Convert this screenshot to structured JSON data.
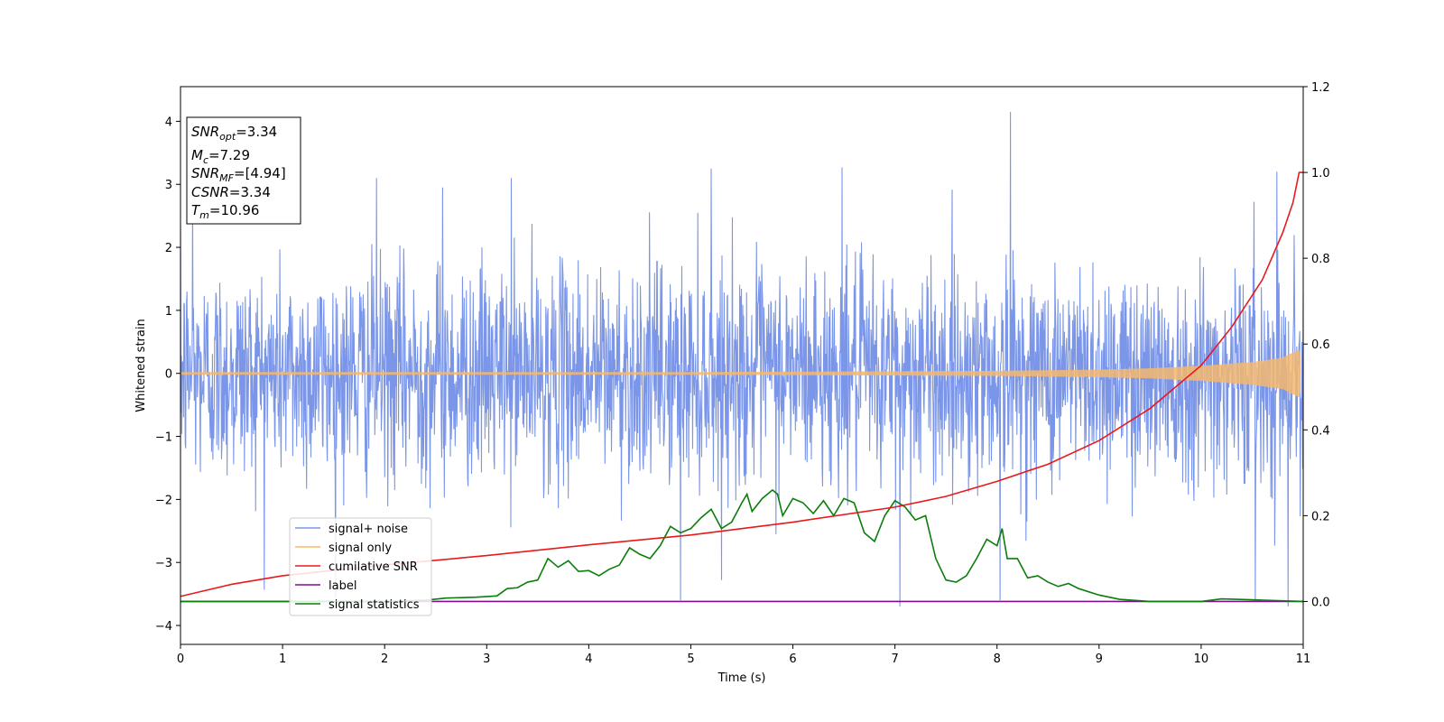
{
  "chart_data": {
    "type": "line",
    "title": "",
    "xlabel": "Time (s)",
    "ylabel": "Whitened strain",
    "y2label": "",
    "xlim": [
      0,
      11
    ],
    "ylim": [
      -4.3,
      4.55
    ],
    "y2lim": [
      -0.1,
      1.2
    ],
    "xticks": [
      0,
      1,
      2,
      3,
      4,
      5,
      6,
      7,
      8,
      9,
      10,
      11
    ],
    "yticks": [
      -4,
      -3,
      -2,
      -1,
      0,
      1,
      2,
      3,
      4
    ],
    "y2ticks": [
      "0.0",
      "0.2",
      "0.4",
      "0.6",
      "0.8",
      "1.0",
      "1.2"
    ],
    "grid": false,
    "legend_position": "lower-left",
    "info_box": {
      "snr_opt": {
        "sym": "SNR",
        "sub": "opt",
        "value": "=3.34"
      },
      "mc": {
        "sym": "M",
        "sub": "c",
        "value": "=7.29"
      },
      "snr_mf": {
        "sym": "SNR",
        "sub": "MF",
        "value": "=[4.94]"
      },
      "csnr": {
        "sym": "CSNR",
        "sub": "",
        "value": "=3.34"
      },
      "tm": {
        "sym": "T",
        "sub": "m",
        "value": "=10.96"
      }
    },
    "series": [
      {
        "name": "signal+ noise",
        "axis": "left",
        "color": "#7b96e8",
        "note_style": "dense noisy trace",
        "amplitude_sd": 0.85,
        "spikes": [
          [
            0.12,
            2.7
          ],
          [
            1.92,
            3.1
          ],
          [
            2.57,
            2.95
          ],
          [
            3.24,
            3.1
          ],
          [
            4.9,
            -3.6
          ],
          [
            5.2,
            3.25
          ],
          [
            6.48,
            3.27
          ],
          [
            7.05,
            -3.7
          ],
          [
            8.13,
            4.15
          ],
          [
            8.03,
            -3.6
          ],
          [
            10.53,
            -3.6
          ],
          [
            10.85,
            -3.7
          ],
          [
            10.74,
            3.2
          ]
        ]
      },
      {
        "name": "signal only",
        "axis": "left",
        "color": "#f5b96e",
        "note_style": "chirp envelope",
        "envelope": [
          [
            0,
            0.02
          ],
          [
            5,
            0.02
          ],
          [
            8,
            0.04
          ],
          [
            9,
            0.06
          ],
          [
            9.5,
            0.08
          ],
          [
            10,
            0.12
          ],
          [
            10.5,
            0.18
          ],
          [
            10.8,
            0.25
          ],
          [
            10.96,
            0.38
          ],
          [
            11,
            0.0
          ]
        ]
      },
      {
        "name": "cumilative SNR",
        "axis": "right",
        "color": "#e8191b",
        "points": [
          [
            0,
            0.012
          ],
          [
            0.5,
            0.04
          ],
          [
            1,
            0.06
          ],
          [
            2,
            0.085
          ],
          [
            3,
            0.107
          ],
          [
            4,
            0.132
          ],
          [
            5,
            0.155
          ],
          [
            6,
            0.185
          ],
          [
            7,
            0.22
          ],
          [
            7.5,
            0.245
          ],
          [
            8,
            0.28
          ],
          [
            8.5,
            0.32
          ],
          [
            9,
            0.375
          ],
          [
            9.5,
            0.45
          ],
          [
            10,
            0.55
          ],
          [
            10.3,
            0.64
          ],
          [
            10.6,
            0.75
          ],
          [
            10.8,
            0.86
          ],
          [
            10.9,
            0.93
          ],
          [
            10.96,
            1.0
          ],
          [
            11,
            1.0
          ]
        ]
      },
      {
        "name": "label",
        "axis": "right",
        "color": "#7e0e8c",
        "points": [
          [
            0,
            0.0
          ],
          [
            11,
            0.0
          ]
        ]
      },
      {
        "name": "signal statistics",
        "axis": "right",
        "color": "#0b7d0b",
        "points": [
          [
            0,
            0.0
          ],
          [
            1,
            0.0
          ],
          [
            2,
            0.0
          ],
          [
            2.4,
            0.003
          ],
          [
            2.6,
            0.008
          ],
          [
            2.9,
            0.01
          ],
          [
            3.1,
            0.013
          ],
          [
            3.2,
            0.03
          ],
          [
            3.3,
            0.032
          ],
          [
            3.4,
            0.045
          ],
          [
            3.5,
            0.05
          ],
          [
            3.6,
            0.1
          ],
          [
            3.7,
            0.08
          ],
          [
            3.8,
            0.095
          ],
          [
            3.9,
            0.07
          ],
          [
            4.0,
            0.072
          ],
          [
            4.1,
            0.06
          ],
          [
            4.2,
            0.075
          ],
          [
            4.3,
            0.085
          ],
          [
            4.4,
            0.125
          ],
          [
            4.5,
            0.11
          ],
          [
            4.6,
            0.1
          ],
          [
            4.7,
            0.13
          ],
          [
            4.8,
            0.175
          ],
          [
            4.9,
            0.16
          ],
          [
            5.0,
            0.17
          ],
          [
            5.1,
            0.195
          ],
          [
            5.2,
            0.215
          ],
          [
            5.3,
            0.17
          ],
          [
            5.4,
            0.185
          ],
          [
            5.5,
            0.23
          ],
          [
            5.55,
            0.25
          ],
          [
            5.6,
            0.21
          ],
          [
            5.7,
            0.24
          ],
          [
            5.8,
            0.26
          ],
          [
            5.85,
            0.25
          ],
          [
            5.9,
            0.2
          ],
          [
            6.0,
            0.24
          ],
          [
            6.1,
            0.23
          ],
          [
            6.2,
            0.205
          ],
          [
            6.3,
            0.235
          ],
          [
            6.4,
            0.2
          ],
          [
            6.45,
            0.22
          ],
          [
            6.5,
            0.24
          ],
          [
            6.6,
            0.23
          ],
          [
            6.7,
            0.16
          ],
          [
            6.8,
            0.14
          ],
          [
            6.9,
            0.2
          ],
          [
            7.0,
            0.235
          ],
          [
            7.1,
            0.22
          ],
          [
            7.2,
            0.19
          ],
          [
            7.3,
            0.2
          ],
          [
            7.4,
            0.1
          ],
          [
            7.5,
            0.05
          ],
          [
            7.6,
            0.045
          ],
          [
            7.7,
            0.06
          ],
          [
            7.8,
            0.1
          ],
          [
            7.9,
            0.145
          ],
          [
            8.0,
            0.13
          ],
          [
            8.05,
            0.17
          ],
          [
            8.1,
            0.1
          ],
          [
            8.2,
            0.1
          ],
          [
            8.3,
            0.055
          ],
          [
            8.4,
            0.06
          ],
          [
            8.5,
            0.045
          ],
          [
            8.6,
            0.035
          ],
          [
            8.7,
            0.042
          ],
          [
            8.8,
            0.03
          ],
          [
            9.0,
            0.015
          ],
          [
            9.2,
            0.005
          ],
          [
            9.5,
            0.0
          ],
          [
            10.0,
            0.0
          ],
          [
            10.2,
            0.006
          ],
          [
            10.5,
            0.004
          ],
          [
            11,
            0.0
          ]
        ]
      }
    ]
  }
}
